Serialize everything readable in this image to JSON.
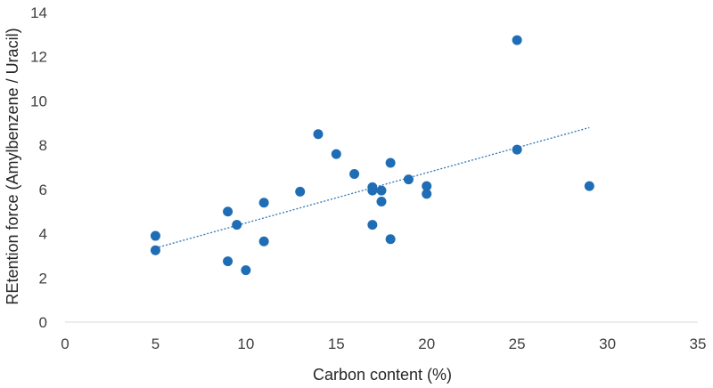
{
  "chart_data": {
    "type": "scatter",
    "title": "",
    "xlabel": "Carbon content (%)",
    "ylabel": "REtention force (Amylbenzene / Uracil)",
    "xlim": [
      0,
      35
    ],
    "ylim": [
      0,
      14
    ],
    "xticks": [
      0,
      5,
      10,
      15,
      20,
      25,
      30,
      35
    ],
    "yticks": [
      0,
      2,
      4,
      6,
      8,
      10,
      12,
      14
    ],
    "grid": false,
    "legend": "none",
    "colors": {
      "points": "#1f6db5",
      "trendline": "#2e75b6",
      "axis": "#d9d9d9"
    },
    "series": [
      {
        "points": [
          [
            5,
            3.9
          ],
          [
            5,
            3.25
          ],
          [
            9,
            5.0
          ],
          [
            9,
            2.75
          ],
          [
            9.5,
            4.4
          ],
          [
            10,
            2.35
          ],
          [
            11,
            5.4
          ],
          [
            11,
            3.65
          ],
          [
            13,
            5.9
          ],
          [
            14,
            8.5
          ],
          [
            15,
            7.6
          ],
          [
            16,
            6.7
          ],
          [
            17,
            6.1
          ],
          [
            17,
            5.95
          ],
          [
            17,
            4.4
          ],
          [
            17.5,
            5.95
          ],
          [
            17.5,
            5.45
          ],
          [
            18,
            7.2
          ],
          [
            18,
            3.75
          ],
          [
            19,
            6.45
          ],
          [
            20,
            6.15
          ],
          [
            20,
            5.8
          ],
          [
            25,
            12.75
          ],
          [
            25,
            7.8
          ],
          [
            29,
            6.15
          ]
        ]
      }
    ],
    "trendline": {
      "type": "linear",
      "x_start": 5,
      "x_end": 29,
      "style": "dotted"
    }
  }
}
